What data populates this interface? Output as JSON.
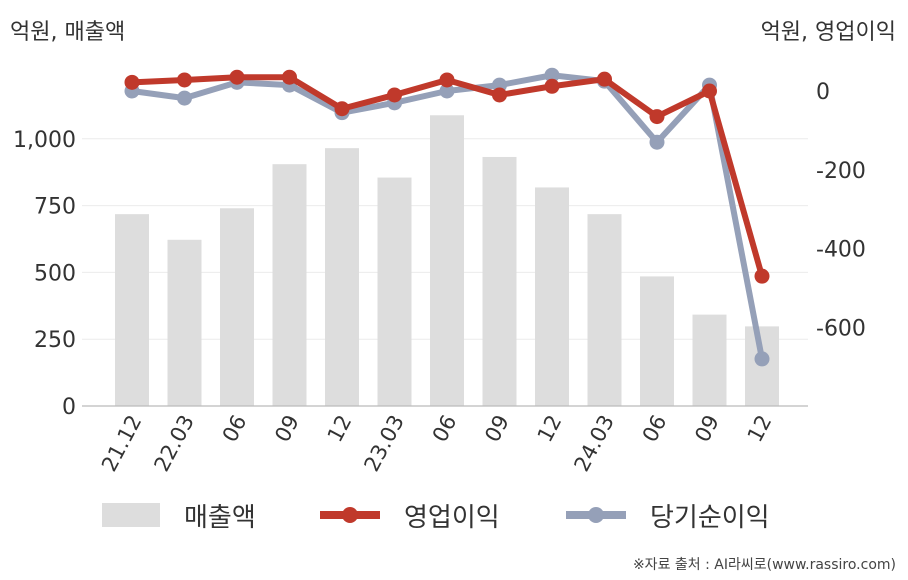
{
  "chart_data": {
    "type": "bar+line",
    "categories": [
      "21.12",
      "22.03",
      "06",
      "09",
      "12",
      "23.03",
      "06",
      "09",
      "12",
      "24.03",
      "06",
      "09",
      "12"
    ],
    "left_axis": {
      "label": "억원, 매출액",
      "ylim": [
        0,
        1200
      ],
      "ticks": [
        0,
        250,
        500,
        750,
        1000
      ],
      "tick_labels": [
        "0",
        "250",
        "500",
        "750",
        "1,000"
      ]
    },
    "right_axis": {
      "label": "억원, 영업이익",
      "ylim": [
        -800,
        40
      ],
      "ticks": [
        0,
        -200,
        -400,
        -600
      ],
      "tick_labels": [
        "0",
        "-200",
        "-400",
        "-600"
      ]
    },
    "series": [
      {
        "name": "매출액",
        "type": "bar",
        "axis": "left",
        "color": "#dddddd",
        "values": [
          718,
          622,
          740,
          905,
          965,
          855,
          1088,
          932,
          818,
          718,
          485,
          342,
          298
        ]
      },
      {
        "name": "영업이익",
        "type": "line",
        "axis": "right",
        "color": "#c0392b",
        "values": [
          22,
          28,
          35,
          35,
          -45,
          -10,
          28,
          -10,
          12,
          30,
          -65,
          0,
          -470
        ]
      },
      {
        "name": "당기순이익",
        "type": "line",
        "axis": "right",
        "color": "#95a0b8",
        "values": [
          0,
          -18,
          22,
          15,
          -55,
          -30,
          0,
          15,
          40,
          25,
          -130,
          15,
          -680
        ]
      }
    ],
    "grid": true,
    "legend_position": "bottom"
  },
  "source_text": "※자료 출처 : AI라씨로(www.rassiro.com)"
}
